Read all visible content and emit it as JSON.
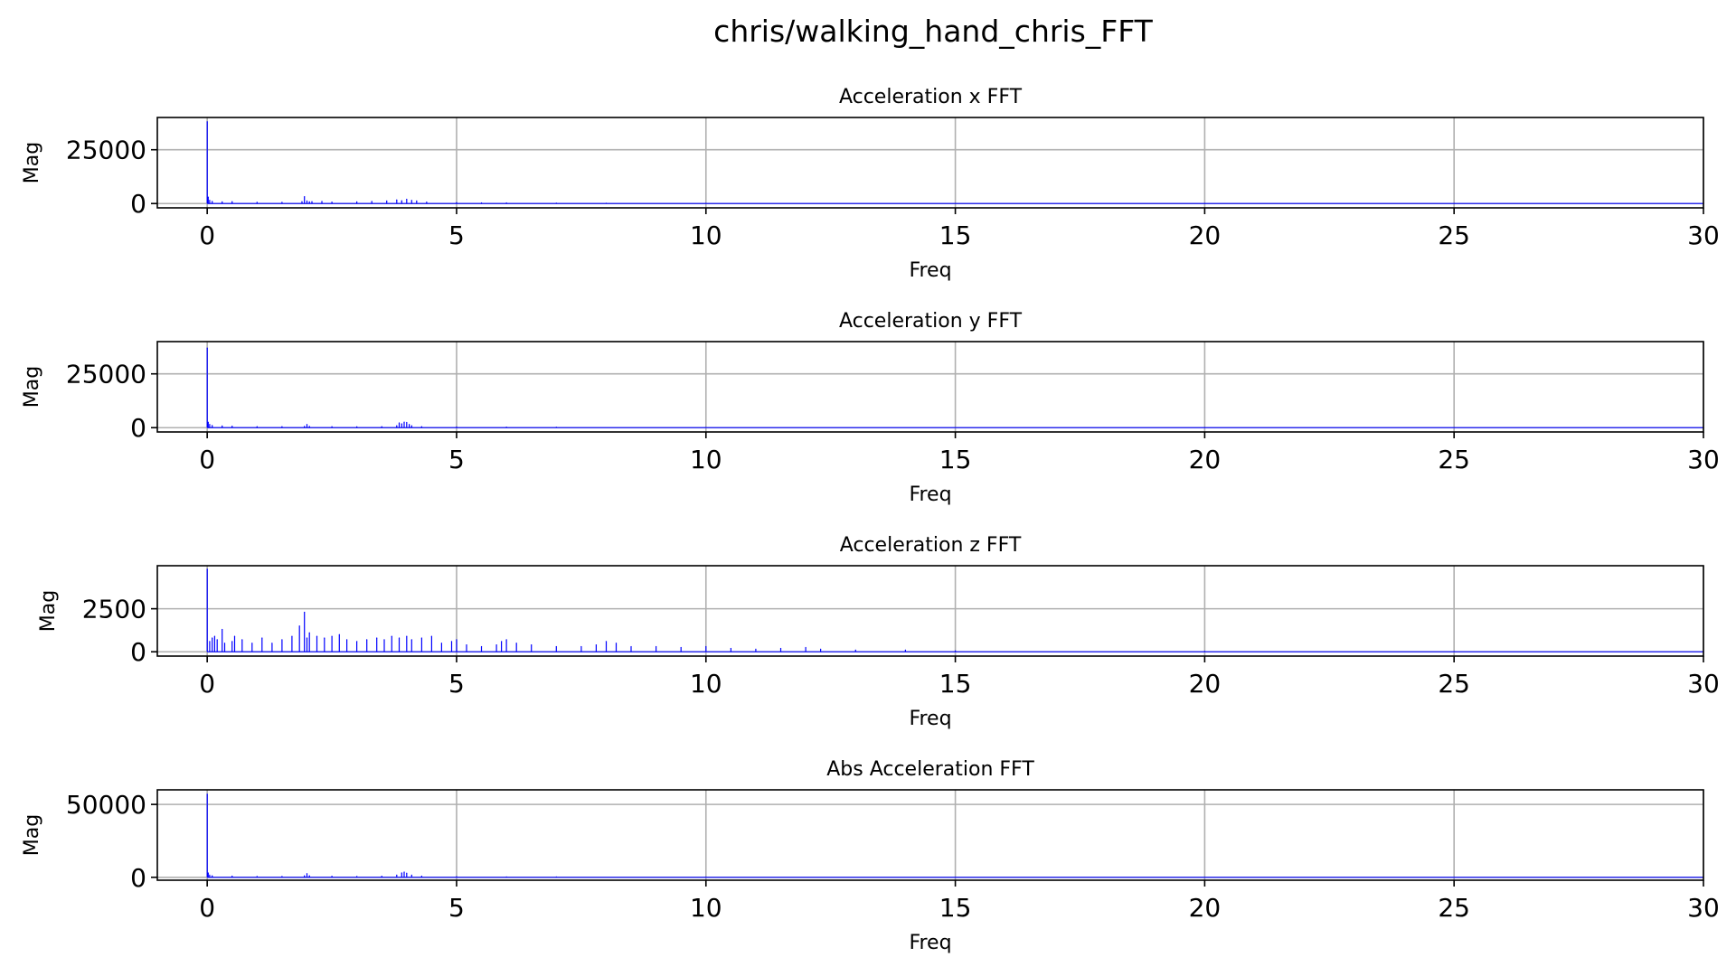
{
  "figure": {
    "suptitle": "chris/walking_hand_chris_FFT"
  },
  "colors": {
    "series": "#0000ff",
    "grid": "#b0b0b0",
    "axes": "#000000",
    "background": "#ffffff"
  },
  "chart_data": [
    {
      "type": "line",
      "title": "Acceleration x FFT",
      "xlabel": "Freq",
      "ylabel": "Mag",
      "xlim": [
        -1,
        30
      ],
      "ylim": [
        -2000,
        40000
      ],
      "xticks": [
        0,
        5,
        10,
        15,
        20,
        25,
        30
      ],
      "yticks": [
        0,
        25000
      ],
      "grid": true,
      "series": [
        {
          "x": [
            0,
            0.02,
            0.05,
            0.1,
            0.3,
            0.5,
            1.0,
            1.5,
            1.9,
            1.95,
            2.0,
            2.05,
            2.1,
            2.3,
            2.5,
            3.0,
            3.3,
            3.6,
            3.8,
            3.9,
            4.0,
            4.1,
            4.2,
            4.4,
            5.0,
            5.5,
            6.0,
            7.0,
            8.0,
            10.0,
            15.0,
            20.0,
            25.0,
            30.0
          ],
          "y": [
            38000,
            3000,
            1500,
            1000,
            800,
            900,
            600,
            600,
            900,
            3200,
            1200,
            800,
            900,
            1000,
            700,
            800,
            1000,
            1200,
            1700,
            1300,
            2000,
            1500,
            1200,
            700,
            400,
            300,
            300,
            200,
            150,
            100,
            80,
            60,
            50,
            40
          ]
        }
      ]
    },
    {
      "type": "line",
      "title": "Acceleration y FFT",
      "xlabel": "Freq",
      "ylabel": "Mag",
      "xlim": [
        -1,
        30
      ],
      "ylim": [
        -2000,
        40000
      ],
      "xticks": [
        0,
        5,
        10,
        15,
        20,
        25,
        30
      ],
      "yticks": [
        0,
        25000
      ],
      "grid": true,
      "series": [
        {
          "x": [
            0,
            0.02,
            0.05,
            0.1,
            0.3,
            0.5,
            1.0,
            1.5,
            1.95,
            2.0,
            2.05,
            2.5,
            3.0,
            3.5,
            3.8,
            3.85,
            3.9,
            3.95,
            4.0,
            4.05,
            4.1,
            4.3,
            5.0,
            6.0,
            7.0,
            10.0,
            15.0,
            20.0,
            25.0,
            30.0
          ],
          "y": [
            37000,
            2500,
            1500,
            1000,
            800,
            700,
            500,
            500,
            600,
            1500,
            600,
            500,
            400,
            500,
            900,
            2200,
            1800,
            2600,
            2400,
            1500,
            900,
            500,
            300,
            250,
            200,
            120,
            80,
            60,
            50,
            40
          ]
        }
      ]
    },
    {
      "type": "line",
      "title": "Acceleration z FFT",
      "xlabel": "Freq",
      "ylabel": "Mag",
      "xlim": [
        -1,
        30
      ],
      "ylim": [
        -250,
        5000
      ],
      "xticks": [
        0,
        5,
        10,
        15,
        20,
        25,
        30
      ],
      "yticks": [
        0,
        2500
      ],
      "grid": true,
      "series": [
        {
          "x": [
            0,
            0.05,
            0.1,
            0.15,
            0.2,
            0.3,
            0.35,
            0.5,
            0.55,
            0.7,
            0.9,
            1.1,
            1.3,
            1.5,
            1.7,
            1.85,
            1.95,
            2.0,
            2.05,
            2.2,
            2.35,
            2.5,
            2.65,
            2.8,
            3.0,
            3.2,
            3.4,
            3.55,
            3.7,
            3.85,
            4.0,
            4.1,
            4.3,
            4.5,
            4.7,
            4.9,
            5.0,
            5.2,
            5.5,
            5.8,
            5.9,
            6.0,
            6.2,
            6.5,
            7.0,
            7.5,
            7.8,
            8.0,
            8.2,
            8.5,
            9.0,
            9.5,
            10.0,
            10.5,
            11.0,
            11.5,
            12.0,
            12.3,
            13.0,
            14.0,
            15.0,
            20.0,
            25.0,
            30.0
          ],
          "y": [
            4800,
            600,
            800,
            900,
            700,
            1300,
            500,
            600,
            900,
            700,
            500,
            800,
            500,
            700,
            900,
            1500,
            2300,
            800,
            1100,
            900,
            800,
            900,
            1000,
            700,
            600,
            700,
            800,
            700,
            900,
            800,
            900,
            700,
            800,
            900,
            500,
            600,
            700,
            400,
            300,
            400,
            600,
            700,
            500,
            400,
            300,
            300,
            400,
            600,
            500,
            300,
            300,
            250,
            300,
            200,
            150,
            200,
            250,
            150,
            100,
            100,
            50,
            30,
            20,
            20
          ]
        }
      ]
    },
    {
      "type": "line",
      "title": "Abs Acceleration FFT",
      "xlabel": "Freq",
      "ylabel": "Mag",
      "xlim": [
        -1,
        30
      ],
      "ylim": [
        -2000,
        60000
      ],
      "xticks": [
        0,
        5,
        10,
        15,
        20,
        25,
        30
      ],
      "yticks": [
        0,
        50000
      ],
      "grid": true,
      "series": [
        {
          "x": [
            0,
            0.02,
            0.05,
            0.1,
            0.5,
            1.0,
            1.5,
            1.95,
            2.0,
            2.05,
            2.5,
            3.0,
            3.5,
            3.8,
            3.9,
            3.95,
            4.0,
            4.1,
            4.3,
            5.0,
            6.0,
            7.0,
            10.0,
            15.0,
            20.0,
            25.0,
            30.0
          ],
          "y": [
            57000,
            3000,
            1500,
            1000,
            800,
            600,
            600,
            1000,
            2500,
            1000,
            700,
            600,
            700,
            1500,
            3000,
            3600,
            2800,
            1500,
            800,
            400,
            300,
            250,
            150,
            80,
            60,
            50,
            40
          ]
        }
      ]
    }
  ]
}
